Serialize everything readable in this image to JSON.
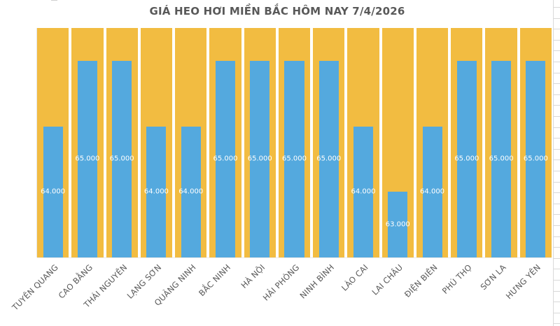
{
  "chart_data": {
    "type": "bar",
    "title": "GIÁ HEO HƠI MIỀN BẮC HÔM NAY 7/4/2026",
    "categories": [
      "TUYÊN QUANG",
      "CAO BẰNG",
      "THÁI NGUYÊN",
      "LẠNG SƠN",
      "QUẢNG NINH",
      "BẮC NINH",
      "HÀ NỘI",
      "HẢI PHÒNG",
      "NINH BÌNH",
      "LÀO CAI",
      "LAI CHÂU",
      "ĐIỆN BIÊN",
      "PHÚ THỌ",
      "SƠN LA",
      "HƯNG YÊN"
    ],
    "values": [
      64000,
      65000,
      65000,
      64000,
      64000,
      65000,
      65000,
      65000,
      65000,
      64000,
      63000,
      64000,
      65000,
      65000,
      65000
    ],
    "value_labels": [
      "64.000",
      "65.000",
      "65.000",
      "64.000",
      "64.000",
      "65.000",
      "65.000",
      "65.000",
      "65.000",
      "64.000",
      "63.000",
      "64.000",
      "65.000",
      "65.000",
      "65.000"
    ],
    "xlabel": "",
    "ylabel": "",
    "ylim": [
      62000,
      65500
    ],
    "legend": "none",
    "grid": "off",
    "data_label_position": "inside-center",
    "x_label_rotation_deg": 45,
    "colors": {
      "bar": "#54A9DE",
      "column_background": "#F2BC41",
      "title_text": "#595959",
      "axis_text": "#595959",
      "data_label_text": "#FFFFFF",
      "worksheet_gridline": "#D9D9D9"
    }
  }
}
